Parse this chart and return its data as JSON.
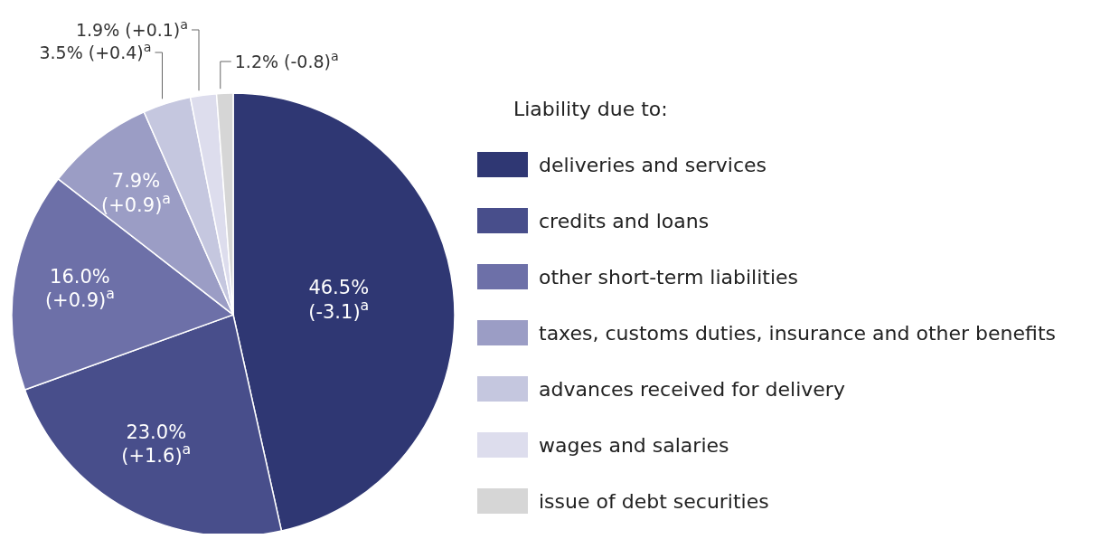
{
  "chart_data": {
    "type": "pie",
    "legend_title": "Liability due to:",
    "legend": "right",
    "categories": [
      "deliveries and services",
      "credits and loans",
      "other short-term liabilities",
      "taxes, customs duties, insurance and other benefits",
      "advances received for delivery",
      "wages and salaries",
      "issue of debt securities"
    ],
    "values": [
      46.5,
      23.0,
      16.0,
      7.9,
      3.5,
      1.9,
      1.2
    ],
    "colors": [
      "#2f3773",
      "#484e8b",
      "#6d70a8",
      "#9b9dc5",
      "#c5c7df",
      "#dddded",
      "#d6d6d6"
    ],
    "value_labels": [
      "46.5% (-3.1)$^{a}$",
      "23.0% (+1.6)$^{a}$",
      "16.0% (+0.9)$^{a}$",
      "7.9% (+0.9)$^{a}$",
      "3.5% (+0.4)$^{a}$",
      "1.9% (+0.1)$^{a}$",
      "1.2% (-0.8)$^{a}$"
    ]
  }
}
